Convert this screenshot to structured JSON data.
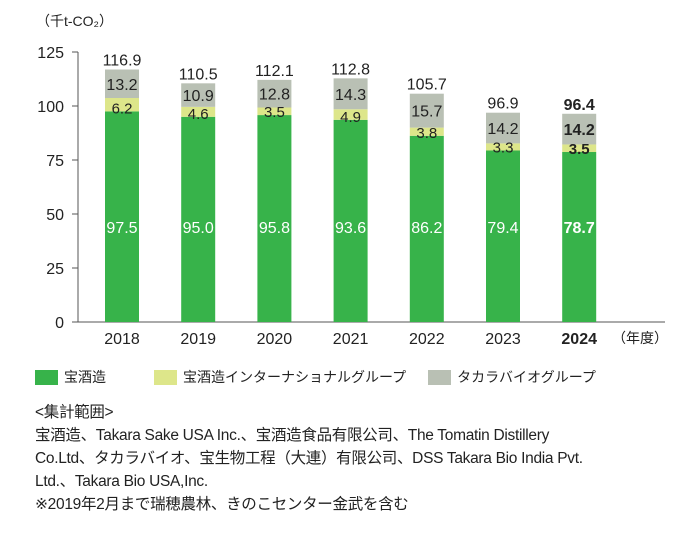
{
  "chart_data": {
    "type": "bar",
    "stacked": true,
    "unit_label": "（千t-CO₂）",
    "x_suffix": "（年度）",
    "categories": [
      "2018",
      "2019",
      "2020",
      "2021",
      "2022",
      "2023",
      "2024"
    ],
    "highlight_category": "2024",
    "ylim": [
      0,
      125
    ],
    "yticks": [
      "0",
      "25",
      "50",
      "75",
      "100",
      "125"
    ],
    "series": [
      {
        "name": "宝酒造",
        "color": "#37b34a",
        "values": [
          97.5,
          95.0,
          95.8,
          93.6,
          86.2,
          79.4,
          78.7
        ],
        "labels": [
          "97.5",
          "95.0",
          "95.8",
          "93.6",
          "86.2",
          "79.4",
          "78.7"
        ]
      },
      {
        "name": "宝酒造インターナショナルグループ",
        "color": "#dde68a",
        "values": [
          6.2,
          4.6,
          3.5,
          4.9,
          3.8,
          3.3,
          3.5
        ],
        "labels": [
          "6.2",
          "4.6",
          "3.5",
          "4.9",
          "3.8",
          "3.3",
          "3.5"
        ]
      },
      {
        "name": "タカラバイオグループ",
        "color": "#b9c0b4",
        "values": [
          13.2,
          10.9,
          12.8,
          14.3,
          15.7,
          14.2,
          14.2
        ],
        "labels": [
          "13.2",
          "10.9",
          "12.8",
          "14.3",
          "15.7",
          "14.2",
          "14.2"
        ]
      }
    ],
    "totals": [
      "116.9",
      "110.5",
      "112.1",
      "112.8",
      "105.7",
      "96.9",
      "96.4"
    ],
    "grid": false,
    "legend_position": "bottom"
  },
  "notes": {
    "heading": "<集計範囲>",
    "lines": [
      "宝酒造、Takara Sake USA Inc.、宝酒造食品有限公司、The Tomatin Distillery",
      "Co.Ltd、タカラバイオ、宝生物工程（大連）有限公司、DSS Takara Bio India Pvt.",
      "Ltd.、Takara Bio USA,Inc.",
      "※2019年2月まで瑞穂農林、きのこセンター金武を含む"
    ]
  }
}
